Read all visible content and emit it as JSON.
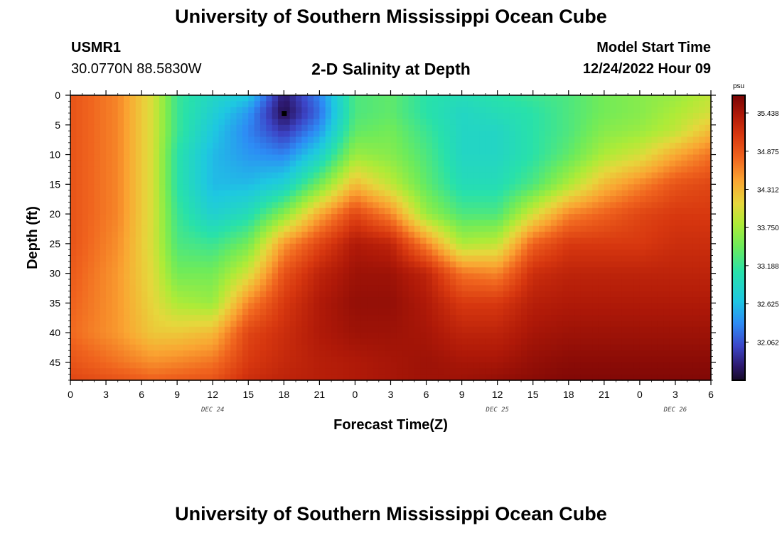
{
  "header": {
    "title": "University of Southern Mississippi Ocean Cube",
    "station_id": "USMR1",
    "coords": "30.0770N  88.5830W",
    "plot_title": "2-D Salinity at Depth",
    "model_label": "Model Start Time",
    "model_time": "12/24/2022 Hour 09",
    "footer_title": "University of Southern Mississippi Ocean Cube"
  },
  "chart_data": {
    "type": "heatmap",
    "title": "2-D Salinity at Depth",
    "xlabel": "Forecast Time(Z)",
    "ylabel": "Depth (ft)",
    "x_ticks": [
      "0",
      "3",
      "6",
      "9",
      "12",
      "15",
      "18",
      "21",
      "0",
      "3",
      "6",
      "9",
      "12",
      "15",
      "18",
      "21",
      "0",
      "3",
      "6"
    ],
    "x_range_hours": [
      0,
      54
    ],
    "x_start": "2022-12-24 00Z",
    "date_labels": [
      {
        "hour": 12,
        "label": "DEC 24"
      },
      {
        "hour": 36,
        "label": "DEC 25"
      },
      {
        "hour": 51,
        "label": "DEC 26"
      }
    ],
    "y_ticks": [
      "0",
      "5",
      "10",
      "15",
      "20",
      "25",
      "30",
      "35",
      "40",
      "45"
    ],
    "ylim": [
      48,
      0
    ],
    "colorbar": {
      "unit": "psu",
      "min": 31.5,
      "max": 35.7,
      "ticks": [
        "35.438",
        "34.875",
        "34.312",
        "33.750",
        "33.188",
        "32.625",
        "32.062"
      ],
      "tick_values": [
        35.438,
        34.875,
        34.312,
        33.75,
        33.188,
        32.625,
        32.062
      ]
    },
    "salinity_profiles": {
      "depths_ft": [
        0,
        3,
        6,
        10,
        15,
        20,
        25,
        30,
        35,
        40,
        45,
        48
      ],
      "profiles": [
        {
          "hour": 0,
          "values": [
            34.9,
            34.9,
            34.9,
            34.9,
            34.9,
            34.9,
            34.9,
            34.85,
            34.8,
            34.75,
            34.9,
            35.0
          ]
        },
        {
          "hour": 4,
          "values": [
            34.6,
            34.6,
            34.6,
            34.6,
            34.6,
            34.6,
            34.55,
            34.5,
            34.5,
            34.5,
            34.7,
            34.9
          ]
        },
        {
          "hour": 7,
          "values": [
            34.0,
            34.0,
            34.0,
            34.0,
            34.0,
            34.0,
            34.0,
            34.05,
            34.1,
            34.2,
            34.55,
            34.8
          ]
        },
        {
          "hour": 9,
          "values": [
            33.2,
            33.2,
            33.2,
            33.1,
            33.1,
            33.2,
            33.3,
            33.5,
            33.8,
            34.2,
            34.6,
            34.85
          ]
        },
        {
          "hour": 12,
          "values": [
            32.9,
            32.8,
            32.7,
            32.6,
            32.6,
            32.8,
            33.2,
            33.5,
            33.7,
            34.3,
            34.7,
            34.9
          ]
        },
        {
          "hour": 15,
          "values": [
            32.7,
            32.4,
            32.3,
            32.4,
            32.6,
            33.0,
            33.5,
            34.0,
            34.6,
            35.0,
            35.1,
            35.2
          ]
        },
        {
          "hour": 18,
          "values": [
            31.7,
            31.6,
            31.9,
            32.3,
            32.8,
            33.6,
            34.5,
            34.9,
            35.1,
            35.2,
            35.25,
            35.3
          ]
        },
        {
          "hour": 21,
          "values": [
            32.3,
            32.2,
            32.4,
            32.8,
            33.5,
            34.4,
            35.0,
            35.3,
            35.4,
            35.4,
            35.35,
            35.35
          ]
        },
        {
          "hour": 24,
          "values": [
            33.3,
            33.3,
            33.4,
            33.7,
            34.3,
            35.0,
            35.4,
            35.5,
            35.55,
            35.5,
            35.4,
            35.4
          ]
        },
        {
          "hour": 27,
          "values": [
            33.4,
            33.4,
            33.5,
            33.6,
            33.9,
            34.6,
            35.3,
            35.5,
            35.55,
            35.5,
            35.45,
            35.45
          ]
        },
        {
          "hour": 30,
          "values": [
            33.1,
            33.1,
            33.2,
            33.3,
            33.4,
            33.7,
            34.6,
            35.3,
            35.4,
            35.45,
            35.5,
            35.5
          ]
        },
        {
          "hour": 33,
          "values": [
            33.0,
            32.9,
            32.9,
            32.9,
            33.0,
            33.3,
            33.8,
            34.7,
            35.1,
            35.3,
            35.45,
            35.5
          ]
        },
        {
          "hour": 36,
          "values": [
            33.1,
            33.0,
            32.9,
            32.9,
            33.0,
            33.3,
            33.9,
            34.6,
            35.1,
            35.3,
            35.45,
            35.55
          ]
        },
        {
          "hour": 39,
          "values": [
            33.2,
            33.1,
            33.1,
            33.1,
            33.3,
            34.0,
            34.8,
            35.2,
            35.35,
            35.45,
            35.55,
            35.6
          ]
        },
        {
          "hour": 42,
          "values": [
            33.3,
            33.3,
            33.3,
            33.4,
            33.8,
            34.6,
            35.1,
            35.3,
            35.4,
            35.5,
            35.6,
            35.65
          ]
        },
        {
          "hour": 45,
          "values": [
            33.5,
            33.5,
            33.6,
            33.8,
            34.3,
            34.8,
            35.1,
            35.3,
            35.4,
            35.5,
            35.6,
            35.65
          ]
        },
        {
          "hour": 48,
          "values": [
            33.6,
            33.6,
            33.7,
            34.0,
            34.6,
            35.0,
            35.1,
            35.3,
            35.4,
            35.5,
            35.6,
            35.65
          ]
        },
        {
          "hour": 51,
          "values": [
            33.7,
            33.8,
            33.9,
            34.4,
            34.9,
            35.1,
            35.2,
            35.3,
            35.4,
            35.5,
            35.6,
            35.65
          ]
        },
        {
          "hour": 54,
          "values": [
            33.9,
            34.0,
            34.3,
            34.7,
            35.0,
            35.1,
            35.2,
            35.3,
            35.4,
            35.5,
            35.6,
            35.65
          ]
        }
      ]
    },
    "markers": [
      {
        "hour": 18,
        "depth_ft": 3
      }
    ],
    "grid": false
  }
}
